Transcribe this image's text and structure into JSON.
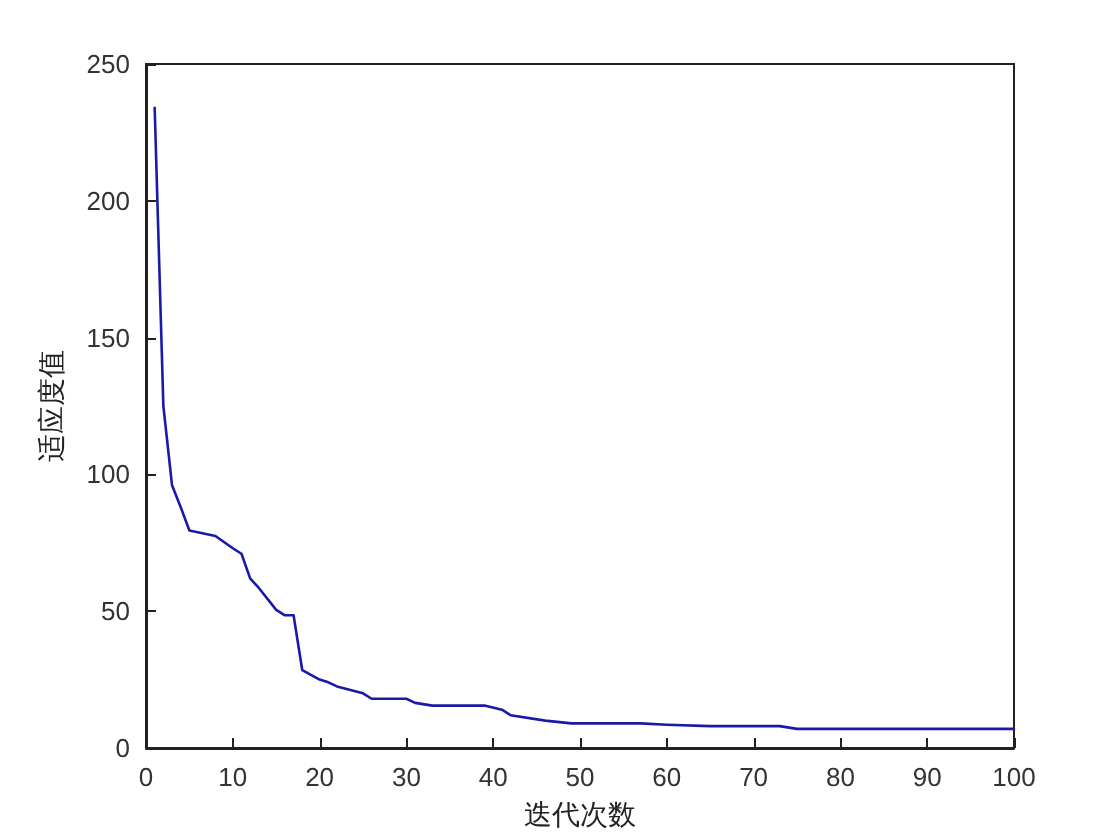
{
  "chart_data": {
    "type": "line",
    "xlabel": "迭代次数",
    "ylabel": "适应度值",
    "x": [
      1,
      2,
      3,
      4,
      5,
      8,
      10,
      11,
      12,
      13,
      15,
      16,
      17,
      18,
      20,
      21,
      22,
      25,
      26,
      30,
      31,
      33,
      39,
      41,
      42,
      46,
      49,
      57,
      60,
      65,
      73,
      75,
      80,
      100
    ],
    "series": [
      {
        "color": "#1a1aa8",
        "values": [
          234,
          125,
          96,
          88,
          79.5,
          77.5,
          73,
          71,
          62,
          58.5,
          50.5,
          48.5,
          48.5,
          28.5,
          25,
          24,
          22.5,
          20,
          18,
          18,
          16.5,
          15.5,
          15.5,
          14,
          12,
          10,
          9,
          9,
          8.5,
          8,
          8,
          7,
          7,
          7
        ]
      }
    ],
    "xlim": [
      0,
      100
    ],
    "xticks": [
      0,
      10,
      20,
      30,
      40,
      50,
      60,
      70,
      80,
      90,
      100
    ],
    "ylim": [
      0,
      250
    ],
    "yticks": [
      0,
      50,
      100,
      150,
      200,
      250
    ],
    "grid": false,
    "marker": "none",
    "line_style": "solid"
  }
}
